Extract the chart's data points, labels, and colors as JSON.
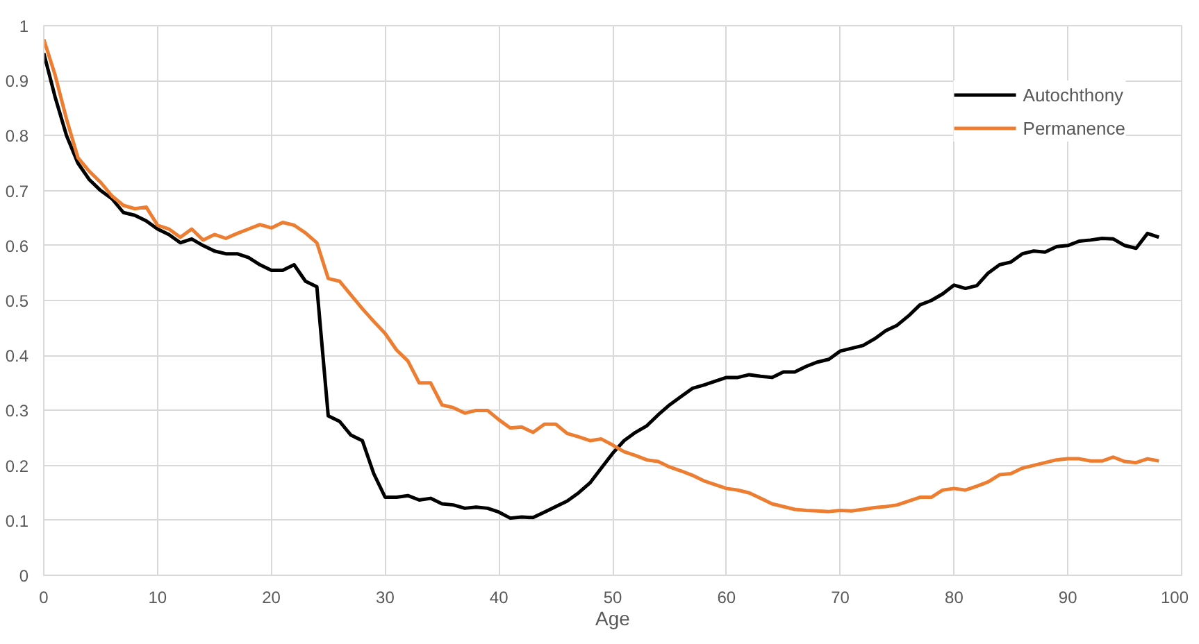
{
  "chart_data": {
    "type": "line",
    "xlabel": "Age",
    "x": [
      0,
      1,
      2,
      3,
      4,
      5,
      6,
      7,
      8,
      9,
      10,
      11,
      12,
      13,
      14,
      15,
      16,
      17,
      18,
      19,
      20,
      21,
      22,
      23,
      24,
      25,
      26,
      27,
      28,
      29,
      30,
      31,
      32,
      33,
      34,
      35,
      36,
      37,
      38,
      39,
      40,
      41,
      42,
      43,
      44,
      45,
      46,
      47,
      48,
      49,
      50,
      51,
      52,
      53,
      54,
      55,
      56,
      57,
      58,
      59,
      60,
      61,
      62,
      63,
      64,
      65,
      66,
      67,
      68,
      69,
      70,
      71,
      72,
      73,
      74,
      75,
      76,
      77,
      78,
      79,
      80,
      81,
      82,
      83,
      84,
      85,
      86,
      87,
      88,
      89,
      90,
      91,
      92,
      93,
      94,
      95,
      96,
      97,
      98
    ],
    "series": [
      {
        "name": "Autochthony",
        "color": "#000000",
        "values": [
          0.95,
          0.87,
          0.8,
          0.75,
          0.72,
          0.7,
          0.685,
          0.66,
          0.655,
          0.645,
          0.63,
          0.62,
          0.605,
          0.612,
          0.6,
          0.59,
          0.585,
          0.585,
          0.578,
          0.565,
          0.555,
          0.555,
          0.565,
          0.535,
          0.525,
          0.29,
          0.28,
          0.255,
          0.245,
          0.185,
          0.142,
          0.142,
          0.145,
          0.137,
          0.14,
          0.13,
          0.128,
          0.122,
          0.124,
          0.122,
          0.115,
          0.104,
          0.106,
          0.105,
          0.115,
          0.125,
          0.135,
          0.15,
          0.168,
          0.195,
          0.222,
          0.245,
          0.26,
          0.272,
          0.292,
          0.31,
          0.325,
          0.34,
          0.346,
          0.353,
          0.36,
          0.36,
          0.365,
          0.362,
          0.36,
          0.37,
          0.37,
          0.38,
          0.388,
          0.393,
          0.408,
          0.413,
          0.418,
          0.43,
          0.445,
          0.455,
          0.472,
          0.492,
          0.5,
          0.512,
          0.528,
          0.522,
          0.527,
          0.55,
          0.565,
          0.57,
          0.585,
          0.59,
          0.588,
          0.598,
          0.6,
          0.608,
          0.61,
          0.613,
          0.612,
          0.6,
          0.595,
          0.622,
          0.615
        ]
      },
      {
        "name": "Permanence",
        "color": "#ed7d31",
        "values": [
          0.975,
          0.91,
          0.83,
          0.76,
          0.735,
          0.715,
          0.69,
          0.673,
          0.667,
          0.67,
          0.637,
          0.63,
          0.615,
          0.63,
          0.61,
          0.62,
          0.613,
          0.622,
          0.63,
          0.638,
          0.632,
          0.642,
          0.637,
          0.623,
          0.605,
          0.54,
          0.535,
          0.51,
          0.485,
          0.462,
          0.44,
          0.41,
          0.39,
          0.35,
          0.35,
          0.31,
          0.305,
          0.295,
          0.3,
          0.3,
          0.283,
          0.268,
          0.27,
          0.26,
          0.275,
          0.275,
          0.258,
          0.252,
          0.245,
          0.248,
          0.237,
          0.225,
          0.218,
          0.21,
          0.207,
          0.197,
          0.19,
          0.182,
          0.172,
          0.165,
          0.158,
          0.155,
          0.15,
          0.14,
          0.13,
          0.125,
          0.12,
          0.118,
          0.117,
          0.116,
          0.118,
          0.117,
          0.12,
          0.123,
          0.125,
          0.128,
          0.135,
          0.142,
          0.142,
          0.155,
          0.158,
          0.155,
          0.162,
          0.17,
          0.183,
          0.185,
          0.195,
          0.2,
          0.205,
          0.21,
          0.212,
          0.212,
          0.208,
          0.208,
          0.215,
          0.207,
          0.205,
          0.212,
          0.208
        ]
      }
    ],
    "xlim": [
      0,
      100
    ],
    "xticks": [
      0,
      10,
      20,
      30,
      40,
      50,
      60,
      70,
      80,
      90,
      100
    ],
    "ylim": [
      0,
      1
    ],
    "yticks": [
      0,
      0.1,
      0.2,
      0.3,
      0.4,
      0.5,
      0.6,
      0.7,
      0.8,
      0.9,
      1
    ],
    "grid": true,
    "legend": "top right",
    "marker": "none",
    "line_style": "solid"
  }
}
